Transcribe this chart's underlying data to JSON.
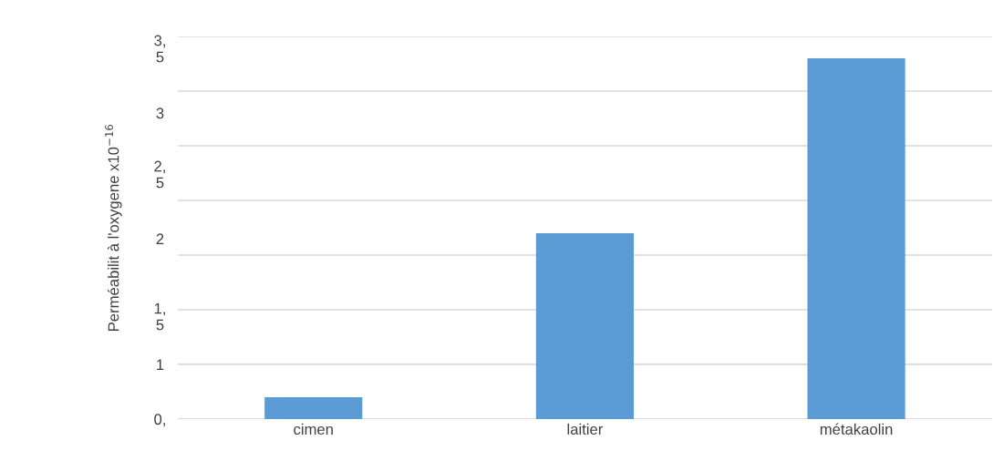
{
  "chart_data": {
    "type": "bar",
    "ylabel": "Perméabilit à l'oxygene x10$^{−16}$",
    "categories": [
      "cimen",
      "laitier",
      "métakaolin"
    ],
    "values": [
      0.2,
      1.7,
      3.3
    ],
    "color": "#5b9bd5",
    "ylim": [
      0,
      3.5
    ],
    "yticks": [
      {
        "value": 0,
        "label": "0,"
      },
      {
        "value": 0.5,
        "label": "1"
      },
      {
        "value": 0.95,
        "label": "1,\n5"
      },
      {
        "value": 1.65,
        "label": "2"
      },
      {
        "value": 2.25,
        "label": "2,\n5"
      },
      {
        "value": 2.8,
        "label": "3"
      },
      {
        "value": 3.4,
        "label": "3,\n5"
      },
      {
        "value": 0.5,
        "label": null
      },
      {
        "value": 1.0,
        "label": null
      },
      {
        "value": 1.5,
        "label": null
      },
      {
        "value": 2.0,
        "label": null
      },
      {
        "value": 2.5,
        "label": null
      },
      {
        "value": 3.0,
        "label": null
      },
      {
        "value": 3.5,
        "label": null
      }
    ],
    "grid": "y"
  }
}
